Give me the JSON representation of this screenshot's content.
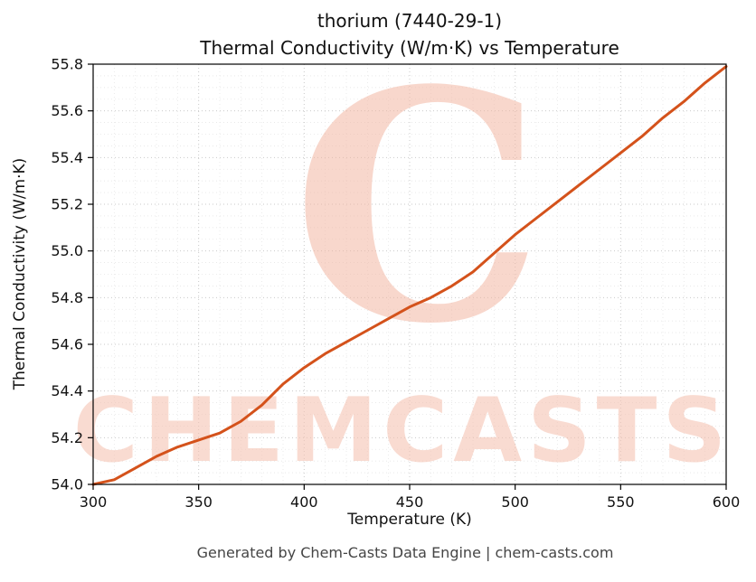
{
  "chart": {
    "title_line1": "thorium (7440-29-1)",
    "title_line2": "Thermal Conductivity (W/m·K) vs Temperature"
  },
  "watermark": {
    "logo_letter": "C",
    "text": "CHEMCASTS",
    "logo_color": "#f2b7a3",
    "text_color": "#f5c3b2"
  },
  "footer": {
    "text": "Generated by Chem-Casts Data Engine | chem-casts.com"
  },
  "chart_data": {
    "type": "line",
    "title": "thorium (7440-29-1)",
    "subtitle": "Thermal Conductivity (W/m·K) vs Temperature",
    "xlabel": "Temperature (K)",
    "ylabel": "Thermal Conductivity (W/m·K)",
    "xlim": [
      300,
      600
    ],
    "ylim": [
      54.0,
      55.8
    ],
    "xticks": [
      300,
      350,
      400,
      450,
      500,
      550,
      600
    ],
    "xtick_labels": [
      "300",
      "350",
      "400",
      "450",
      "500",
      "550",
      "600"
    ],
    "yticks": [
      54.0,
      54.2,
      54.4,
      54.6,
      54.8,
      55.0,
      55.2,
      55.4,
      55.6,
      55.8
    ],
    "ytick_labels": [
      "54.0",
      "54.2",
      "54.4",
      "54.6",
      "54.8",
      "55.0",
      "55.2",
      "55.4",
      "55.6",
      "55.8"
    ],
    "x_minor_step": 10,
    "y_minor_step": 0.05,
    "grid": true,
    "legend": false,
    "line_color": "#d4521b",
    "grid_major_color": "#c9c9c9",
    "grid_minor_color": "#e6e6e6",
    "x": [
      300,
      310,
      320,
      330,
      340,
      350,
      360,
      370,
      380,
      390,
      400,
      410,
      420,
      430,
      440,
      450,
      460,
      470,
      480,
      490,
      500,
      510,
      520,
      530,
      540,
      550,
      560,
      570,
      580,
      590,
      600
    ],
    "y": [
      54.0,
      54.02,
      54.07,
      54.12,
      54.16,
      54.19,
      54.22,
      54.27,
      54.34,
      54.43,
      54.5,
      54.56,
      54.61,
      54.66,
      54.71,
      54.76,
      54.8,
      54.85,
      54.91,
      54.99,
      55.07,
      55.14,
      55.21,
      55.28,
      55.35,
      55.42,
      55.49,
      55.57,
      55.64,
      55.72,
      55.79
    ]
  }
}
